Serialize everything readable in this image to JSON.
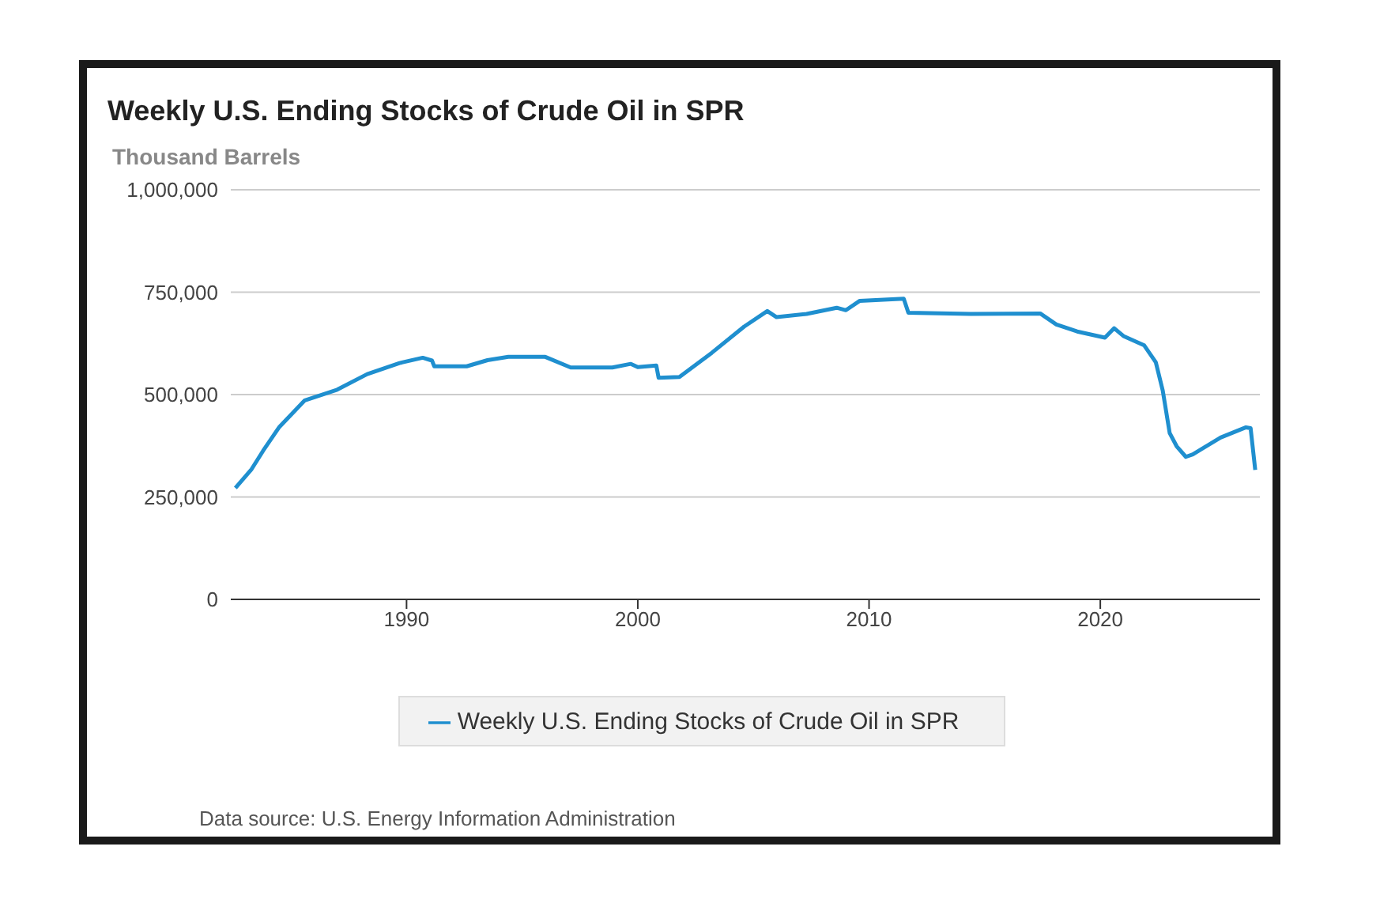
{
  "chart_data": {
    "type": "line",
    "title": "Weekly U.S. Ending Stocks of Crude Oil in SPR",
    "ylabel": "Thousand Barrels",
    "annotations": [
      "Data source: U.S. Energy Information Administration"
    ],
    "x": [
      1982.6,
      1983.3,
      1983.8,
      1984.5,
      1985.6,
      1987,
      1988.3,
      1989.7,
      1990.7,
      1991.1,
      1991.2,
      1992.6,
      1993.5,
      1994.4,
      1996,
      1997.1,
      1998.9,
      1999.7,
      2000,
      2000.8,
      2000.9,
      2001.8,
      2003.2,
      2004.6,
      2005.6,
      2006,
      2007.3,
      2008.6,
      2009,
      2009.6,
      2011.5,
      2011.7,
      2014.4,
      2017.4,
      2018.1,
      2019,
      2020.2,
      2020.6,
      2021,
      2021.9,
      2022.4,
      2022.7,
      2023,
      2023.3,
      2023.7,
      2024,
      2025.2,
      2026.3,
      2026.5,
      2026.7
    ],
    "series": [
      {
        "name": "Weekly U.S. Ending Stocks of Crude Oil in SPR",
        "color": "#1f8fcf",
        "values": [
          272000,
          318000,
          363000,
          421000,
          486000,
          512000,
          550000,
          577000,
          590000,
          583000,
          569000,
          569000,
          584000,
          592000,
          592000,
          566000,
          566000,
          575000,
          567000,
          571000,
          541000,
          543000,
          602000,
          666000,
          704000,
          689000,
          697000,
          712000,
          706000,
          729000,
          734000,
          700000,
          697000,
          698000,
          671000,
          654000,
          639000,
          662000,
          643000,
          620000,
          579000,
          510000,
          406000,
          374000,
          348000,
          354000,
          395000,
          420000,
          418000,
          316000
        ]
      }
    ],
    "xlim": [
      1982.4,
      2026.9
    ],
    "xticks": [
      1990,
      2000,
      2010,
      2020
    ],
    "ylim": [
      0,
      1000000
    ],
    "yticks": [
      0,
      {
        "value": 250000,
        "label": "250,000"
      },
      {
        "value": 500000,
        "label": "500,000"
      },
      {
        "value": 750000,
        "label": "750,000"
      },
      {
        "value": 1000000,
        "label": "1,000,000"
      }
    ],
    "grid": "y",
    "legend": "bottom",
    "marker": "none",
    "line_style": "solid"
  }
}
